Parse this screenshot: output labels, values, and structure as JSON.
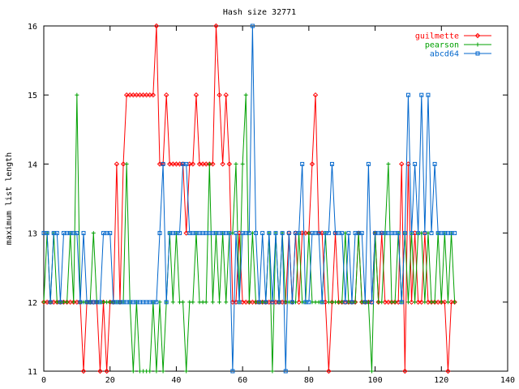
{
  "chart_data": {
    "type": "line",
    "title": "Hash size 32771",
    "xlabel": "",
    "ylabel": "maximum list length",
    "xlim": [
      0,
      140
    ],
    "ylim": [
      11,
      16
    ],
    "xticks": [
      0,
      20,
      40,
      60,
      80,
      100,
      120,
      140
    ],
    "yticks": [
      11,
      12,
      13,
      14,
      15,
      16
    ],
    "grid": false,
    "legend": "top-right",
    "series": [
      {
        "name": "guilmette",
        "color": "#ff0000",
        "marker": "diamond",
        "x": [
          0,
          1,
          2,
          3,
          4,
          5,
          6,
          7,
          8,
          9,
          10,
          11,
          12,
          13,
          14,
          15,
          16,
          17,
          18,
          19,
          20,
          21,
          22,
          23,
          24,
          25,
          26,
          27,
          28,
          29,
          30,
          31,
          32,
          33,
          34,
          35,
          36,
          37,
          38,
          39,
          40,
          41,
          42,
          43,
          44,
          45,
          46,
          47,
          48,
          49,
          50,
          51,
          52,
          53,
          54,
          55,
          56,
          57,
          58,
          59,
          60,
          61,
          62,
          63,
          64,
          65,
          66,
          67,
          68,
          69,
          70,
          71,
          72,
          73,
          74,
          75,
          76,
          77,
          78,
          79,
          80,
          81,
          82,
          83,
          84,
          85,
          86,
          87,
          88,
          89,
          90,
          91,
          92,
          93,
          94,
          95,
          96,
          97,
          98,
          99,
          100,
          101,
          102,
          103,
          104,
          105,
          106,
          107,
          108,
          109,
          110,
          111,
          112,
          113,
          114,
          115,
          116,
          117,
          118,
          119,
          120,
          121,
          122,
          123,
          124
        ],
        "y": [
          12,
          12,
          12,
          12,
          12,
          12,
          12,
          12,
          12,
          12,
          12,
          12,
          11,
          12,
          12,
          12,
          12,
          11,
          12,
          11,
          12,
          12,
          14,
          12,
          14,
          15,
          15,
          15,
          15,
          15,
          15,
          15,
          15,
          15,
          16,
          14,
          14,
          15,
          14,
          14,
          14,
          14,
          14,
          13,
          14,
          14,
          15,
          14,
          14,
          14,
          14,
          14,
          16,
          15,
          14,
          15,
          14,
          12,
          12,
          13,
          12,
          12,
          12,
          12,
          12,
          12,
          12,
          12,
          12,
          12,
          12,
          12,
          12,
          12,
          13,
          12,
          13,
          12,
          13,
          13,
          13,
          14,
          15,
          13,
          13,
          12,
          11,
          12,
          13,
          12,
          12,
          12,
          12,
          12,
          12,
          13,
          12,
          12,
          12,
          12,
          13,
          12,
          13,
          12,
          12,
          12,
          12,
          12,
          14,
          11,
          14,
          12,
          13,
          12,
          12,
          13,
          12,
          12,
          12,
          12,
          12,
          12,
          11,
          12,
          12
        ]
      },
      {
        "name": "pearson",
        "color": "#00a000",
        "marker": "plus",
        "x": [
          0,
          1,
          2,
          3,
          4,
          5,
          6,
          7,
          8,
          9,
          10,
          11,
          12,
          13,
          14,
          15,
          16,
          17,
          18,
          19,
          20,
          21,
          22,
          23,
          24,
          25,
          26,
          27,
          28,
          29,
          30,
          31,
          32,
          33,
          34,
          35,
          36,
          37,
          38,
          39,
          40,
          41,
          42,
          43,
          44,
          45,
          46,
          47,
          48,
          49,
          50,
          51,
          52,
          53,
          54,
          55,
          56,
          57,
          58,
          59,
          60,
          61,
          62,
          63,
          64,
          65,
          66,
          67,
          68,
          69,
          70,
          71,
          72,
          73,
          74,
          75,
          76,
          77,
          78,
          79,
          80,
          81,
          82,
          83,
          84,
          85,
          86,
          87,
          88,
          89,
          90,
          91,
          92,
          93,
          94,
          95,
          96,
          97,
          98,
          99,
          100,
          101,
          102,
          103,
          104,
          105,
          106,
          107,
          108,
          109,
          110,
          111,
          112,
          113,
          114,
          115,
          116,
          117,
          118,
          119,
          120,
          121,
          122,
          123,
          124
        ],
        "y": [
          12,
          13,
          12,
          13,
          12,
          12,
          12,
          12,
          13,
          12,
          15,
          12,
          12,
          12,
          12,
          13,
          12,
          12,
          12,
          12,
          12,
          12,
          12,
          12,
          12,
          14,
          12,
          11,
          12,
          11,
          11,
          11,
          11,
          12,
          11,
          12,
          11,
          12,
          13,
          12,
          13,
          12,
          12,
          11,
          12,
          12,
          13,
          12,
          12,
          12,
          14,
          12,
          13,
          12,
          13,
          12,
          13,
          13,
          14,
          12,
          14,
          15,
          12,
          13,
          12,
          12,
          12,
          12,
          13,
          11,
          13,
          12,
          13,
          12,
          12,
          12,
          12,
          13,
          12,
          12,
          13,
          12,
          12,
          12,
          12,
          13,
          12,
          12,
          12,
          12,
          12,
          13,
          12,
          12,
          12,
          13,
          12,
          12,
          12,
          11,
          13,
          12,
          12,
          13,
          14,
          12,
          12,
          13,
          12,
          13,
          12,
          13,
          12,
          13,
          13,
          12,
          13,
          12,
          12,
          13,
          12,
          13,
          12,
          13,
          12
        ]
      },
      {
        "name": "abcd64",
        "color": "#0066cc",
        "marker": "square",
        "x": [
          0,
          1,
          2,
          3,
          4,
          5,
          6,
          7,
          8,
          9,
          10,
          11,
          12,
          13,
          14,
          15,
          16,
          17,
          18,
          19,
          20,
          21,
          22,
          23,
          24,
          25,
          26,
          27,
          28,
          29,
          30,
          31,
          32,
          33,
          34,
          35,
          36,
          37,
          38,
          39,
          40,
          41,
          42,
          43,
          44,
          45,
          46,
          47,
          48,
          49,
          50,
          51,
          52,
          53,
          54,
          55,
          56,
          57,
          58,
          59,
          60,
          61,
          62,
          63,
          64,
          65,
          66,
          67,
          68,
          69,
          70,
          71,
          72,
          73,
          74,
          75,
          76,
          77,
          78,
          79,
          80,
          81,
          82,
          83,
          84,
          85,
          86,
          87,
          88,
          89,
          90,
          91,
          92,
          93,
          94,
          95,
          96,
          97,
          98,
          99,
          100,
          101,
          102,
          103,
          104,
          105,
          106,
          107,
          108,
          109,
          110,
          111,
          112,
          113,
          114,
          115,
          116,
          117,
          118,
          119,
          120,
          121,
          122,
          123,
          124
        ],
        "y": [
          13,
          13,
          12,
          13,
          13,
          12,
          13,
          13,
          13,
          13,
          13,
          12,
          13,
          12,
          12,
          12,
          12,
          12,
          13,
          13,
          13,
          12,
          12,
          12,
          12,
          12,
          12,
          12,
          12,
          12,
          12,
          12,
          12,
          12,
          12,
          13,
          14,
          12,
          13,
          13,
          13,
          13,
          14,
          14,
          13,
          13,
          13,
          13,
          13,
          13,
          13,
          13,
          13,
          13,
          13,
          13,
          13,
          11,
          13,
          12,
          13,
          13,
          13,
          16,
          13,
          12,
          13,
          12,
          13,
          12,
          13,
          12,
          13,
          11,
          13,
          12,
          13,
          13,
          14,
          12,
          12,
          13,
          13,
          13,
          12,
          13,
          13,
          14,
          13,
          13,
          13,
          12,
          13,
          12,
          13,
          13,
          13,
          12,
          14,
          12,
          13,
          13,
          13,
          13,
          13,
          13,
          13,
          13,
          12,
          13,
          15,
          13,
          14,
          13,
          15,
          13,
          15,
          13,
          14,
          13,
          13,
          13,
          13,
          13,
          13
        ]
      }
    ]
  }
}
